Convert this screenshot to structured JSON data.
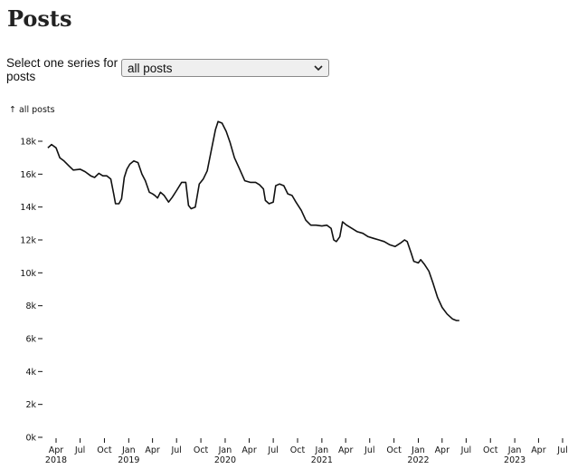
{
  "page": {
    "title": "Posts",
    "selector_label": "Select one series for posts",
    "selector_value": "all posts",
    "selector_options": [
      "all posts"
    ]
  },
  "chart_data": {
    "type": "line",
    "ylabel": "↑ all posts",
    "xlabel": "",
    "ylim": [
      0,
      19000
    ],
    "y_ticks": [
      0,
      2000,
      4000,
      6000,
      8000,
      10000,
      12000,
      14000,
      16000,
      18000
    ],
    "y_tick_labels": [
      "0k",
      "2k",
      "4k",
      "6k",
      "8k",
      "10k",
      "12k",
      "14k",
      "16k",
      "18k"
    ],
    "x_ticks": [
      {
        "date": "2018-04-01",
        "label": "Apr",
        "year": "2018"
      },
      {
        "date": "2018-07-01",
        "label": "Jul",
        "year": ""
      },
      {
        "date": "2018-10-01",
        "label": "Oct",
        "year": ""
      },
      {
        "date": "2019-01-01",
        "label": "Jan",
        "year": "2019"
      },
      {
        "date": "2019-04-01",
        "label": "Apr",
        "year": ""
      },
      {
        "date": "2019-07-01",
        "label": "Jul",
        "year": ""
      },
      {
        "date": "2019-10-01",
        "label": "Oct",
        "year": ""
      },
      {
        "date": "2020-01-01",
        "label": "Jan",
        "year": "2020"
      },
      {
        "date": "2020-04-01",
        "label": "Apr",
        "year": ""
      },
      {
        "date": "2020-07-01",
        "label": "Jul",
        "year": ""
      },
      {
        "date": "2020-10-01",
        "label": "Oct",
        "year": ""
      },
      {
        "date": "2021-01-01",
        "label": "Jan",
        "year": "2021"
      },
      {
        "date": "2021-04-01",
        "label": "Apr",
        "year": ""
      },
      {
        "date": "2021-07-01",
        "label": "Jul",
        "year": ""
      },
      {
        "date": "2021-10-01",
        "label": "Oct",
        "year": ""
      },
      {
        "date": "2022-01-01",
        "label": "Jan",
        "year": "2022"
      },
      {
        "date": "2022-04-01",
        "label": "Apr",
        "year": ""
      },
      {
        "date": "2022-07-01",
        "label": "Jul",
        "year": ""
      },
      {
        "date": "2022-10-01",
        "label": "Oct",
        "year": ""
      },
      {
        "date": "2023-01-01",
        "label": "Jan",
        "year": "2023"
      },
      {
        "date": "2023-04-01",
        "label": "Apr",
        "year": ""
      },
      {
        "date": "2023-07-01",
        "label": "Jul",
        "year": ""
      }
    ],
    "series": [
      {
        "color": "#111111",
        "points": [
          [
            "2018-03-01",
            17600
          ],
          [
            "2018-03-15",
            17800
          ],
          [
            "2018-04-01",
            17600
          ],
          [
            "2018-04-15",
            17000
          ],
          [
            "2018-05-01",
            16800
          ],
          [
            "2018-05-20",
            16500
          ],
          [
            "2018-06-05",
            16250
          ],
          [
            "2018-07-01",
            16300
          ],
          [
            "2018-07-20",
            16150
          ],
          [
            "2018-08-10",
            15900
          ],
          [
            "2018-08-25",
            15800
          ],
          [
            "2018-09-10",
            16050
          ],
          [
            "2018-09-25",
            15900
          ],
          [
            "2018-10-10",
            15900
          ],
          [
            "2018-10-25",
            15700
          ],
          [
            "2018-11-05",
            14800
          ],
          [
            "2018-11-12",
            14200
          ],
          [
            "2018-11-25",
            14200
          ],
          [
            "2018-12-05",
            14500
          ],
          [
            "2018-12-15",
            15800
          ],
          [
            "2018-12-25",
            16300
          ],
          [
            "2019-01-05",
            16600
          ],
          [
            "2019-01-20",
            16800
          ],
          [
            "2019-02-05",
            16700
          ],
          [
            "2019-02-20",
            16000
          ],
          [
            "2019-03-05",
            15600
          ],
          [
            "2019-03-20",
            14900
          ],
          [
            "2019-04-01",
            14800
          ],
          [
            "2019-04-10",
            14700
          ],
          [
            "2019-04-20",
            14550
          ],
          [
            "2019-05-01",
            14900
          ],
          [
            "2019-05-15",
            14700
          ],
          [
            "2019-06-01",
            14300
          ],
          [
            "2019-06-15",
            14600
          ],
          [
            "2019-07-01",
            15000
          ],
          [
            "2019-07-20",
            15500
          ],
          [
            "2019-08-05",
            15500
          ],
          [
            "2019-08-15",
            14100
          ],
          [
            "2019-08-25",
            13900
          ],
          [
            "2019-09-10",
            14000
          ],
          [
            "2019-09-25",
            15400
          ],
          [
            "2019-10-10",
            15700
          ],
          [
            "2019-10-25",
            16200
          ],
          [
            "2019-11-10",
            17500
          ],
          [
            "2019-11-25",
            18700
          ],
          [
            "2019-12-05",
            19200
          ],
          [
            "2019-12-20",
            19100
          ],
          [
            "2020-01-05",
            18600
          ],
          [
            "2020-01-20",
            17900
          ],
          [
            "2020-02-05",
            17000
          ],
          [
            "2020-02-25",
            16300
          ],
          [
            "2020-03-15",
            15600
          ],
          [
            "2020-04-05",
            15500
          ],
          [
            "2020-04-25",
            15500
          ],
          [
            "2020-05-10",
            15350
          ],
          [
            "2020-05-25",
            15100
          ],
          [
            "2020-06-01",
            14400
          ],
          [
            "2020-06-15",
            14200
          ],
          [
            "2020-07-01",
            14300
          ],
          [
            "2020-07-10",
            15300
          ],
          [
            "2020-07-25",
            15400
          ],
          [
            "2020-08-10",
            15300
          ],
          [
            "2020-08-25",
            14800
          ],
          [
            "2020-09-10",
            14700
          ],
          [
            "2020-09-25",
            14300
          ],
          [
            "2020-10-15",
            13800
          ],
          [
            "2020-11-01",
            13200
          ],
          [
            "2020-11-20",
            12900
          ],
          [
            "2020-12-10",
            12900
          ],
          [
            "2021-01-01",
            12850
          ],
          [
            "2021-01-20",
            12900
          ],
          [
            "2021-02-05",
            12700
          ],
          [
            "2021-02-15",
            12000
          ],
          [
            "2021-02-25",
            11900
          ],
          [
            "2021-03-10",
            12200
          ],
          [
            "2021-03-20",
            13100
          ],
          [
            "2021-04-05",
            12900
          ],
          [
            "2021-04-25",
            12700
          ],
          [
            "2021-05-15",
            12500
          ],
          [
            "2021-06-05",
            12400
          ],
          [
            "2021-06-25",
            12200
          ],
          [
            "2021-07-15",
            12100
          ],
          [
            "2021-08-05",
            12000
          ],
          [
            "2021-08-25",
            11900
          ],
          [
            "2021-09-15",
            11700
          ],
          [
            "2021-10-05",
            11600
          ],
          [
            "2021-10-25",
            11800
          ],
          [
            "2021-11-10",
            12000
          ],
          [
            "2021-11-20",
            11900
          ],
          [
            "2021-12-05",
            11200
          ],
          [
            "2021-12-15",
            10700
          ],
          [
            "2022-01-01",
            10600
          ],
          [
            "2022-01-10",
            10800
          ],
          [
            "2022-01-25",
            10500
          ],
          [
            "2022-02-10",
            10100
          ],
          [
            "2022-02-25",
            9400
          ],
          [
            "2022-03-15",
            8500
          ],
          [
            "2022-04-01",
            7900
          ],
          [
            "2022-04-20",
            7500
          ],
          [
            "2022-05-10",
            7200
          ],
          [
            "2022-05-25",
            7100
          ],
          [
            "2022-06-05",
            7100
          ]
        ]
      }
    ]
  }
}
